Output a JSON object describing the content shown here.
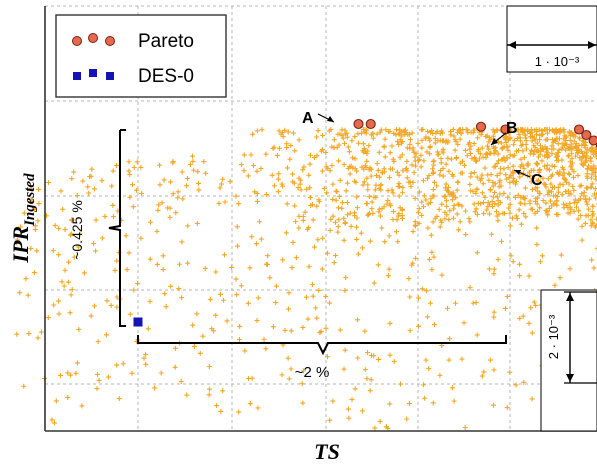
{
  "chart_data": {
    "type": "scatter",
    "xlabel": "TS",
    "ylabel_main": "IPR",
    "ylabel_sub": "Ingested",
    "grid": true,
    "legend_position": "top-left",
    "axis_tick_labels": false,
    "colors": {
      "cloud": "#f5a623",
      "pareto_fill": "#e4694f",
      "pareto_edge": "#7a2412",
      "des0": "#1414b4",
      "grid": "#b5b5b5",
      "axes": "#333333"
    },
    "series": [
      {
        "name": "Pareto",
        "marker": "circle",
        "points": [
          [
            -0.6,
            0.36
          ],
          [
            -0.55,
            0.36
          ],
          [
            -0.1,
            0.355
          ],
          [
            0.0,
            0.35
          ],
          [
            0.3,
            0.35
          ],
          [
            0.33,
            0.34
          ],
          [
            0.36,
            0.33
          ],
          [
            0.39,
            0.32
          ],
          [
            0.41,
            0.31
          ],
          [
            0.44,
            0.3
          ],
          [
            0.47,
            0.29
          ],
          [
            0.5,
            0.28
          ]
        ]
      },
      {
        "name": "DES-0",
        "marker": "square",
        "points": [
          [
            -1.5,
            0.0
          ]
        ]
      }
    ],
    "cloud": {
      "marker": "plus",
      "dense_region": {
        "x": [
          -1.1,
          0.5
        ],
        "y": [
          0.22,
          0.36
        ]
      },
      "sparse_region": {
        "x": [
          -2.0,
          0.5
        ],
        "y": [
          -0.2,
          0.3
        ]
      }
    },
    "annotations": {
      "points": [
        "A",
        "B",
        "C"
      ],
      "h_bracket": "~2 %",
      "v_bracket": "~0.425 %",
      "x_scale": "1 · 10⁻³",
      "y_scale": "2 · 10⁻³"
    }
  }
}
